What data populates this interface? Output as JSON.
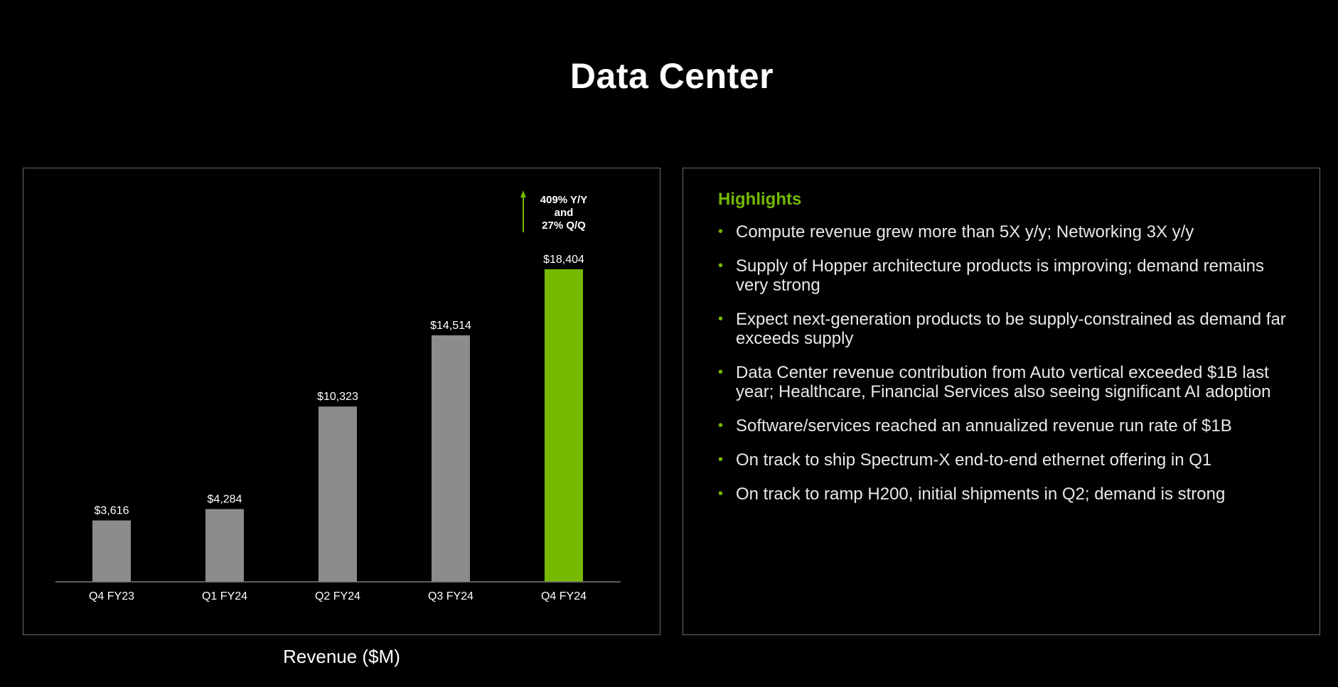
{
  "page": {
    "title": "Data Center"
  },
  "colors": {
    "accent": "#76b900",
    "bar": "#8c8c8c",
    "background": "#000000"
  },
  "chart_data": {
    "type": "bar",
    "title": "",
    "caption": "Revenue ($M)",
    "xlabel": "",
    "ylabel": "",
    "categories": [
      "Q4 FY23",
      "Q1 FY24",
      "Q2 FY24",
      "Q3 FY24",
      "Q4 FY24"
    ],
    "values": [
      3616,
      4284,
      10323,
      14514,
      18404
    ],
    "data_labels": [
      "$3,616",
      "$4,284",
      "$10,323",
      "$14,514",
      "$18,404"
    ],
    "highlight_index": 4,
    "ylim": [
      0,
      21000
    ],
    "grid": false,
    "annotation": {
      "lines": [
        "409% Y/Y",
        "and",
        "27% Q/Q"
      ],
      "icon": "up-arrow-icon"
    }
  },
  "highlights": {
    "heading": "Highlights",
    "items": [
      "Compute revenue grew more than 5X y/y; Networking 3X y/y",
      "Supply of Hopper architecture products is improving; demand remains very strong",
      "Expect next-generation products to be supply-constrained as demand far exceeds supply",
      "Data Center revenue contribution from Auto vertical exceeded $1B last year; Healthcare, Financial Services also seeing significant AI adoption",
      "Software/services reached an annualized revenue run rate of $1B",
      "On track to ship Spectrum-X end-to-end ethernet offering in Q1",
      "On track to ramp H200, initial shipments in Q2; demand is strong"
    ]
  }
}
